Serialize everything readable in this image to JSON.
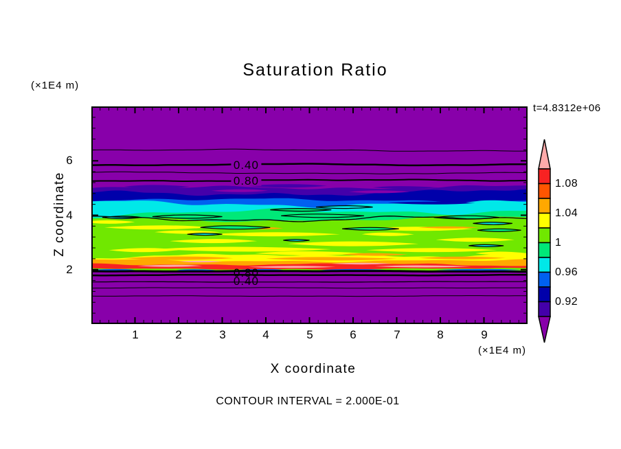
{
  "chart_data": {
    "type": "heatmap",
    "title": "Saturation Ratio",
    "xlabel": "X coordinate",
    "ylabel": "Z coordinate",
    "x_units": "(×1E4 m)",
    "y_units": "(×1E4 m)",
    "time_label": "t=4.8312e+06",
    "contour_note": "CONTOUR INTERVAL = 2.000E-01",
    "xlim": [
      0,
      10
    ],
    "ylim": [
      0,
      8
    ],
    "xticks": [
      1,
      2,
      3,
      4,
      5,
      6,
      7,
      8,
      9
    ],
    "yticks": [
      2,
      4,
      6
    ],
    "x_minor_step": 0.2,
    "y_minor_step": 0.4,
    "colorbar": {
      "over_color": "#FFAAAA",
      "under_color": "#8800AA",
      "cell_colors": [
        "#F82222",
        "#FF5500",
        "#FFA800",
        "#FFFF00",
        "#70E800",
        "#00E878",
        "#00E8E8",
        "#0060F0",
        "#0000AA",
        "#4400AA"
      ],
      "labels": [
        {
          "text": "1.08",
          "after_cell": 1
        },
        {
          "text": "1.04",
          "after_cell": 3
        },
        {
          "text": "1",
          "after_cell": 5
        },
        {
          "text": "0.96",
          "after_cell": 7
        },
        {
          "text": "0.92",
          "after_cell": 9
        }
      ]
    },
    "field": {
      "background": "#8800AA",
      "layers": [
        {
          "c": "#4400AA",
          "top": 5.02,
          "amp": 4
        },
        {
          "c": "#0000AA",
          "top": 4.84,
          "amp": 6
        },
        {
          "c": "#0060F0",
          "top": 4.55,
          "amp": 4
        },
        {
          "c": "#00E8E8",
          "top": 4.42,
          "amp": 6
        },
        {
          "c": "#00E878",
          "top": 4.12,
          "amp": 6
        },
        {
          "c": "#70E800",
          "top": 3.85,
          "amp": 5
        },
        {
          "c": "#FFFF00",
          "top": 2.52,
          "amp": 4
        },
        {
          "c": "#FFA800",
          "top": 2.34,
          "amp": 3
        },
        {
          "c": "#F82222",
          "top": 2.19,
          "amp": 2.5
        },
        {
          "c": "#70E800",
          "top": 2.03,
          "amp": 1.5
        },
        {
          "c": "#8800AA",
          "top": 1.96,
          "amp": 1
        }
      ],
      "streaks": [
        {
          "c": "#FFFF00",
          "x": 1.5,
          "y": 3.55,
          "w": 2.4,
          "h": 3
        },
        {
          "c": "#FFFF00",
          "x": 4.2,
          "y": 3.3,
          "w": 3.0,
          "h": 3
        },
        {
          "c": "#FFFF00",
          "x": 7.5,
          "y": 3.5,
          "w": 2.5,
          "h": 3
        },
        {
          "c": "#FFFF00",
          "x": 2.8,
          "y": 3.05,
          "w": 2.0,
          "h": 3
        },
        {
          "c": "#FFFF00",
          "x": 6.0,
          "y": 2.95,
          "w": 3.0,
          "h": 3.5
        },
        {
          "c": "#FFFF00",
          "x": 8.8,
          "y": 3.1,
          "w": 1.8,
          "h": 3
        },
        {
          "c": "#FFFF00",
          "x": 3.5,
          "y": 2.75,
          "w": 4.0,
          "h": 3.5
        },
        {
          "c": "#FFFF00",
          "x": 7.8,
          "y": 2.72,
          "w": 3.0,
          "h": 3
        },
        {
          "c": "#FFFF00",
          "x": 1.2,
          "y": 2.72,
          "w": 1.6,
          "h": 3
        },
        {
          "c": "#FFFF00",
          "x": 5.0,
          "y": 2.6,
          "w": 2.5,
          "h": 3
        },
        {
          "c": "#FFFF00",
          "x": 0.4,
          "y": 3.75,
          "w": 1.2,
          "h": 2.5
        },
        {
          "c": "#FFFF00",
          "x": 2.2,
          "y": 3.38,
          "w": 1.5,
          "h": 2.5
        },
        {
          "c": "#FFFF00",
          "x": 9.4,
          "y": 2.6,
          "w": 1.2,
          "h": 2.5
        },
        {
          "c": "#FFFF00",
          "x": 6.8,
          "y": 3.3,
          "w": 1.2,
          "h": 2.5
        },
        {
          "c": "#FFA800",
          "x": 2.0,
          "y": 2.42,
          "w": 2.5,
          "h": 2.5
        },
        {
          "c": "#FFA800",
          "x": 5.5,
          "y": 2.4,
          "w": 3.0,
          "h": 2.5
        },
        {
          "c": "#FFA800",
          "x": 8.5,
          "y": 2.43,
          "w": 2.0,
          "h": 2
        },
        {
          "c": "#FFA800",
          "x": 4.0,
          "y": 3.52,
          "w": 0.8,
          "h": 1.5
        },
        {
          "c": "#FFA800",
          "x": 8.2,
          "y": 3.55,
          "w": 1.4,
          "h": 1.5
        },
        {
          "c": "#FFA800",
          "x": 6.5,
          "y": 2.56,
          "w": 1.5,
          "h": 2
        },
        {
          "c": "#FFAAAA",
          "x": 1.8,
          "y": 2.14,
          "w": 1.5,
          "h": 1.5
        },
        {
          "c": "#FFAAAA",
          "x": 4.6,
          "y": 2.1,
          "w": 2.0,
          "h": 1.5
        },
        {
          "c": "#FFAAAA",
          "x": 7.6,
          "y": 2.12,
          "w": 2.2,
          "h": 1.5
        },
        {
          "c": "#FFAAAA",
          "x": 2.5,
          "y": 2.3,
          "w": 1.0,
          "h": 1.2
        },
        {
          "c": "#FFAAAA",
          "x": 6.2,
          "y": 2.22,
          "w": 1.4,
          "h": 1.2
        },
        {
          "c": "#4400AA",
          "x": 1.5,
          "y": 5.05,
          "w": 1.5,
          "h": 2.5
        },
        {
          "c": "#4400AA",
          "x": 4.5,
          "y": 5.08,
          "w": 1.8,
          "h": 2.5
        },
        {
          "c": "#4400AA",
          "x": 7.2,
          "y": 5.02,
          "w": 1.5,
          "h": 2
        },
        {
          "c": "#4400AA",
          "x": 9.3,
          "y": 5.0,
          "w": 1.0,
          "h": 2
        },
        {
          "c": "#4400AA",
          "x": 3.0,
          "y": 4.96,
          "w": 1.0,
          "h": 2
        },
        {
          "c": "#8800AA",
          "x": 3.4,
          "y": 4.9,
          "w": 1.3,
          "h": 2
        },
        {
          "c": "#8800AA",
          "x": 6.6,
          "y": 4.86,
          "w": 1.4,
          "h": 2
        },
        {
          "c": "#0000AA",
          "x": 7.8,
          "y": 4.45,
          "w": 2.0,
          "h": 2
        },
        {
          "c": "#0000AA",
          "x": 1.6,
          "y": 4.68,
          "w": 1.5,
          "h": 1.5
        },
        {
          "c": "#0060F0",
          "x": 0.5,
          "y": 1.99,
          "w": 1.0,
          "h": 1.2
        },
        {
          "c": "#0060F0",
          "x": 2.4,
          "y": 1.98,
          "w": 0.9,
          "h": 1.2
        },
        {
          "c": "#0060F0",
          "x": 3.9,
          "y": 1.99,
          "w": 1.0,
          "h": 1.2
        },
        {
          "c": "#0060F0",
          "x": 6.0,
          "y": 1.99,
          "w": 1.5,
          "h": 1.2
        },
        {
          "c": "#0060F0",
          "x": 8.9,
          "y": 1.99,
          "w": 2.0,
          "h": 1.2
        }
      ],
      "patches": [
        {
          "c": "#00E878",
          "x": 2.2,
          "y": 3.95,
          "w": 1.6,
          "h": 2.5
        },
        {
          "c": "#00E878",
          "x": 5.3,
          "y": 3.98,
          "w": 1.9,
          "h": 2.5
        },
        {
          "c": "#00E878",
          "x": 8.6,
          "y": 3.92,
          "w": 1.5,
          "h": 2.5
        },
        {
          "c": "#00E878",
          "x": 3.3,
          "y": 3.55,
          "w": 1.6,
          "h": 2.5
        },
        {
          "c": "#00E878",
          "x": 6.4,
          "y": 3.5,
          "w": 1.3,
          "h": 2
        },
        {
          "c": "#00E878",
          "x": 9.35,
          "y": 3.45,
          "w": 1.0,
          "h": 2
        },
        {
          "c": "#00E878",
          "x": 4.8,
          "y": 4.2,
          "w": 1.4,
          "h": 2
        },
        {
          "c": "#00E8E8",
          "x": 5.8,
          "y": 4.3,
          "w": 1.3,
          "h": 2
        },
        {
          "c": "#00E8E8",
          "x": 0.7,
          "y": 3.92,
          "w": 0.9,
          "h": 1.8
        },
        {
          "c": "#00E8E8",
          "x": 9.2,
          "y": 3.7,
          "w": 0.9,
          "h": 1.8
        },
        {
          "c": "#00E8E8",
          "x": 4.7,
          "y": 3.08,
          "w": 0.6,
          "h": 1.3
        },
        {
          "c": "#00E8E8",
          "x": 9.05,
          "y": 2.88,
          "w": 0.8,
          "h": 1.5
        },
        {
          "c": "#00E8E8",
          "x": 2.6,
          "y": 3.3,
          "w": 0.8,
          "h": 1.5
        }
      ],
      "lines": [
        {
          "y": 6.39,
          "w": 1,
          "amp": 1.5
        },
        {
          "y": 5.86,
          "w": 2.5,
          "amp": 1.5
        },
        {
          "y": 5.55,
          "w": 1,
          "amp": 1.5
        },
        {
          "y": 5.28,
          "w": 2,
          "amp": 1.5
        },
        {
          "y": 3.86,
          "w": 1.3,
          "amp": 5
        },
        {
          "y": 1.94,
          "w": 3,
          "amp": 0.6
        },
        {
          "y": 1.8,
          "w": 2.5,
          "amp": 0.6
        },
        {
          "y": 1.55,
          "w": 1.2,
          "amp": 0.6
        },
        {
          "y": 1.33,
          "w": 1,
          "amp": 0.6
        },
        {
          "y": 1.03,
          "w": 1,
          "amp": 0.6
        }
      ],
      "line_labels": [
        {
          "text": "0.40",
          "x": 3.55,
          "y": 5.86,
          "bg": true
        },
        {
          "text": "0.80",
          "x": 3.55,
          "y": 5.28,
          "bg": true
        },
        {
          "text": "0.80",
          "x": 3.55,
          "y": 1.89,
          "bg": false
        },
        {
          "text": "0.40",
          "x": 3.55,
          "y": 1.59,
          "bg": false
        }
      ]
    }
  }
}
